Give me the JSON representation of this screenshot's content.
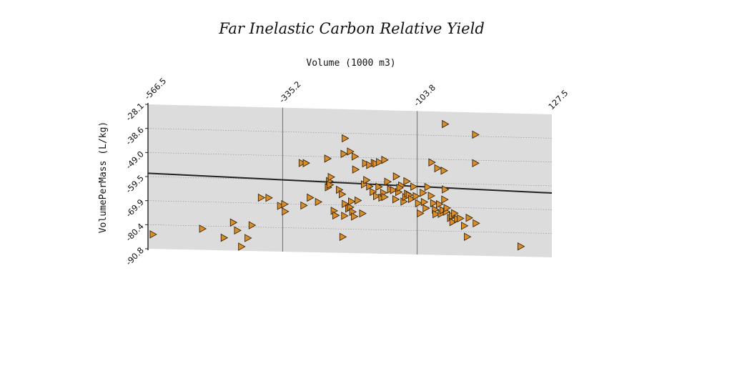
{
  "chart_data": {
    "type": "scatter",
    "title": "Far Inelastic Carbon Relative Yield",
    "xlabel": "Volume (1000 m3)",
    "ylabel": "VolumePerMass (L/kg)",
    "x_axis_position": "top",
    "x_ticks": [
      "-566.5",
      "-335.2",
      "-103.8",
      "127.5"
    ],
    "y_ticks": [
      "-28.1",
      "-38.6",
      "-49.0",
      "-59.5",
      "-69.9",
      "-80.4",
      "-90.8"
    ],
    "xlim": [
      -566.5,
      127.5
    ],
    "ylim": [
      -90.8,
      -28.1
    ],
    "grid": true,
    "marker": "triangle-right",
    "colors": {
      "marker_fill": "#D98E2B",
      "marker_stroke": "#3a2508",
      "plot_bg": "#dcdcdc",
      "trend_line": "#222222"
    },
    "trend_line": {
      "x": [
        -566.5,
        127.5
      ],
      "y": [
        -58.0,
        -62.6
      ]
    },
    "series": [
      {
        "points": [
          [
            -558,
            -84.5
          ],
          [
            -473,
            -81.6
          ],
          [
            -436,
            -85.3
          ],
          [
            -420,
            -78.6
          ],
          [
            -413,
            -82.0
          ],
          [
            -406,
            -89.0
          ],
          [
            -395,
            -85.2
          ],
          [
            -388,
            -79.6
          ],
          [
            -372,
            -67.5
          ],
          [
            -359,
            -67.5
          ],
          [
            -339,
            -70.9
          ],
          [
            -332,
            -70.1
          ],
          [
            -331,
            -73.3
          ],
          [
            -302,
            -52.0
          ],
          [
            -295,
            -52.0
          ],
          [
            -299,
            -70.5
          ],
          [
            -288,
            -67.0
          ],
          [
            -274,
            -68.8
          ],
          [
            -258,
            -49.8
          ],
          [
            -257,
            -62.3
          ],
          [
            -255,
            -59.6
          ],
          [
            -254,
            -61.2
          ],
          [
            -252,
            -57.8
          ],
          [
            -247,
            -72.5
          ],
          [
            -244,
            -74.5
          ],
          [
            -238,
            -63.3
          ],
          [
            -233,
            -65.2
          ],
          [
            -232,
            -83.8
          ],
          [
            -229,
            -74.6
          ],
          [
            -228,
            -69.4
          ],
          [
            -222,
            -71.4
          ],
          [
            -219,
            -70.8
          ],
          [
            -217,
            -68.3
          ],
          [
            -215,
            -72.8
          ],
          [
            -212,
            -74.8
          ],
          [
            -206,
            -67.8
          ],
          [
            -228,
            -40.8
          ],
          [
            -230,
            -47.6
          ],
          [
            -219,
            -46.5
          ],
          [
            -211,
            -48.6
          ],
          [
            -210,
            -54.3
          ],
          [
            -198,
            -73.4
          ],
          [
            -195,
            -60.7
          ],
          [
            -191,
            -58.8
          ],
          [
            -186,
            -61.5
          ],
          [
            -180,
            -63.9
          ],
          [
            -174,
            -65.7
          ],
          [
            -170,
            -61.6
          ],
          [
            -165,
            -66.3
          ],
          [
            -162,
            -64.2
          ],
          [
            -160,
            -66.0
          ],
          [
            -155,
            -59.3
          ],
          [
            -150,
            -62.6
          ],
          [
            -145,
            -62.9
          ],
          [
            -141,
            -66.9
          ],
          [
            -136,
            -63.7
          ],
          [
            -131,
            -60.8
          ],
          [
            -127,
            -67.8
          ],
          [
            -124,
            -65.8
          ],
          [
            -121,
            -64.3
          ],
          [
            -193,
            -51.5
          ],
          [
            -186,
            -52.2
          ],
          [
            -178,
            -51.2
          ],
          [
            -175,
            -51.5
          ],
          [
            -169,
            -50.8
          ],
          [
            -160,
            -49.8
          ],
          [
            -140,
            -56.9
          ],
          [
            -134,
            -61.8
          ],
          [
            -122,
            -58.9
          ],
          [
            -118,
            -64.9
          ],
          [
            -114,
            -66.6
          ],
          [
            -110,
            -61.2
          ],
          [
            -106,
            -65.3
          ],
          [
            -102,
            -68.4
          ],
          [
            -99,
            -72.8
          ],
          [
            -94,
            -63.8
          ],
          [
            -92,
            -67.8
          ],
          [
            -89,
            -70.5
          ],
          [
            -86,
            -61.2
          ],
          [
            -80,
            -65.0
          ],
          [
            -76,
            -68.2
          ],
          [
            -73,
            -71.0
          ],
          [
            -72,
            -73.0
          ],
          [
            -66,
            -68.6
          ],
          [
            -63,
            -72.8
          ],
          [
            -60,
            -71.2
          ],
          [
            -57,
            -66.5
          ],
          [
            -54,
            -71.8
          ],
          [
            -53,
            -70.2
          ],
          [
            -47,
            -74.5
          ],
          [
            -44,
            -73.6
          ],
          [
            -43,
            -76.3
          ],
          [
            -40,
            -72.4
          ],
          [
            -35,
            -74.9
          ],
          [
            -30,
            -74.6
          ],
          [
            -23,
            -77.8
          ],
          [
            -15,
            -74.3
          ],
          [
            -3,
            -76.6
          ],
          [
            -18,
            -82.6
          ],
          [
            -79,
            -50.4
          ],
          [
            -69,
            -52.9
          ],
          [
            -58,
            -53.9
          ],
          [
            -56,
            -62.1
          ],
          [
            -56,
            -33.5
          ],
          [
            -4,
            -37.8
          ],
          [
            -4,
            -50.3
          ],
          [
            74,
            -86.3
          ]
        ]
      }
    ]
  }
}
